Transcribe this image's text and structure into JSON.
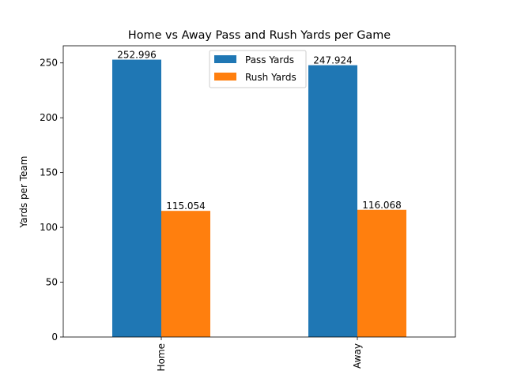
{
  "chart_data": {
    "type": "bar",
    "title": "Home vs Away Pass and Rush Yards per Game",
    "xlabel": "",
    "ylabel": "Yards per Team",
    "categories": [
      "Home",
      "Away"
    ],
    "series": [
      {
        "name": "Pass Yards",
        "values": [
          252.996,
          247.924
        ],
        "labels": [
          "252.996",
          "247.924"
        ],
        "color": "#1f77b4"
      },
      {
        "name": "Rush Yards",
        "values": [
          115.054,
          116.068
        ],
        "labels": [
          "115.054",
          "116.068"
        ],
        "color": "#ff7f0e"
      }
    ],
    "ylim": [
      0,
      265.6458
    ],
    "yticks": [
      0,
      50,
      100,
      150,
      200,
      250
    ],
    "grid": false,
    "legend_position": "top-center"
  }
}
